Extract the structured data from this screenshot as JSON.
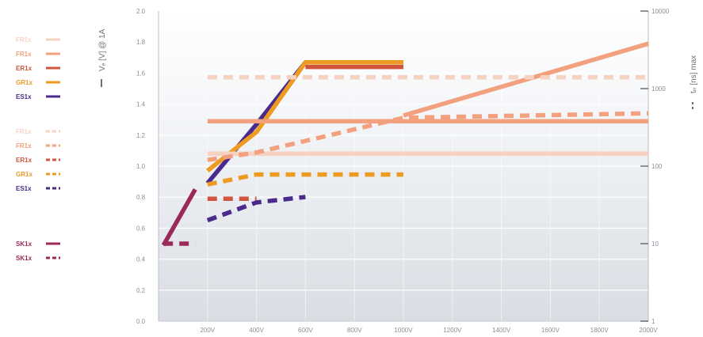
{
  "chart_data": {
    "type": "line",
    "title": "",
    "xlabel": "",
    "ylabel_left": "Vₑ [V] @ 1A",
    "ylabel_right": "tᵣᵣ [ns] max",
    "x_tick_labels": [
      "200V",
      "400V",
      "600V",
      "800V",
      "1000V",
      "1200V",
      "1400V",
      "1600V",
      "1800V",
      "2000V"
    ],
    "x_tick_values": [
      200,
      400,
      600,
      800,
      1000,
      1200,
      1400,
      1600,
      1800,
      2000
    ],
    "xlim": [
      0,
      2000
    ],
    "ylim_left": [
      0,
      2.0
    ],
    "y_left_ticks": [
      "0.0",
      "0.2",
      "0.4",
      "0.6",
      "0.8",
      "1.0",
      "1.2",
      "1.4",
      "1.6",
      "1.8",
      "2.0"
    ],
    "y_left_tick_values": [
      0,
      0.2,
      0.4,
      0.6,
      0.8,
      1.0,
      1.2,
      1.4,
      1.6,
      1.8,
      2.0
    ],
    "ylim_right": [
      1,
      10000
    ],
    "y_right_scale": "log",
    "y_right_ticks": [
      "1",
      "10",
      "100",
      "1000",
      "10000"
    ],
    "y_right_tick_values": [
      1,
      10,
      100,
      1000,
      10000
    ],
    "grid": true,
    "legend_groups": [
      {
        "style": "solid",
        "items": [
          {
            "label": "FR1x",
            "color": "#f7d2c3"
          },
          {
            "label": "FR1x",
            "color": "#f2a07d"
          },
          {
            "label": "ER1x",
            "color": "#d2563f"
          },
          {
            "label": "GR1x",
            "color": "#ee9b22"
          },
          {
            "label": "ES1x",
            "color": "#4b2a8c"
          }
        ]
      },
      {
        "style": "dashed",
        "items": [
          {
            "label": "FR1x",
            "color": "#f7d2c3"
          },
          {
            "label": "FR1x",
            "color": "#f2a07d"
          },
          {
            "label": "ER1x",
            "color": "#d2563f"
          },
          {
            "label": "GR1x",
            "color": "#ee9b22"
          },
          {
            "label": "ES1x",
            "color": "#4b2a8c"
          }
        ]
      },
      {
        "style": "mixed",
        "items": [
          {
            "label": "SK1x",
            "color": "#9b2a5a"
          },
          {
            "label": "SK1x",
            "color": "#9b2a5a"
          }
        ]
      }
    ],
    "series": [
      {
        "axis": "left",
        "style": "solid",
        "color": "#4b2a8c",
        "x": [
          200,
          400,
          600
        ],
        "y": [
          0.89,
          1.27,
          1.67
        ]
      },
      {
        "axis": "left",
        "style": "solid",
        "color": "#ee9b22",
        "x": [
          200,
          400,
          600,
          1000
        ],
        "y": [
          0.97,
          1.22,
          1.67,
          1.67
        ]
      },
      {
        "axis": "left",
        "style": "solid",
        "color": "#d2563f",
        "x": [
          600,
          1000
        ],
        "y": [
          1.64,
          1.64
        ]
      },
      {
        "axis": "left",
        "style": "solid",
        "color": "#f2a07d",
        "x": [
          200,
          2000
        ],
        "y": [
          1.29,
          1.29
        ]
      },
      {
        "axis": "left",
        "style": "solid",
        "color": "#f7d2c3",
        "x": [
          200,
          2000
        ],
        "y": [
          1.08,
          1.08
        ]
      },
      {
        "axis": "left",
        "style": "solid",
        "color": "#9b2a5a",
        "x": [
          20,
          150
        ],
        "y": [
          0.49,
          0.85
        ]
      },
      {
        "axis": "right",
        "style": "dashed",
        "color": "#f2a07d",
        "x": [
          200,
          400,
          1000,
          2000
        ],
        "y": [
          120,
          150,
          420,
          480
        ]
      },
      {
        "axis": "right",
        "style": "solid",
        "color": "#f2a07d",
        "x": [
          1000,
          2000
        ],
        "y": [
          450,
          3800
        ]
      },
      {
        "axis": "right",
        "style": "dashed",
        "color": "#f7d2c3",
        "x": [
          200,
          2000
        ],
        "y": [
          1400,
          1400
        ]
      },
      {
        "axis": "right",
        "style": "dashed",
        "color": "#ee9b22",
        "x": [
          200,
          400,
          1000
        ],
        "y": [
          58,
          78,
          78
        ]
      },
      {
        "axis": "right",
        "style": "dashed",
        "color": "#d2563f",
        "x": [
          200,
          400
        ],
        "y": [
          38,
          38
        ]
      },
      {
        "axis": "right",
        "style": "dashed",
        "color": "#4b2a8c",
        "x": [
          200,
          400,
          600
        ],
        "y": [
          20,
          34,
          40
        ]
      },
      {
        "axis": "right",
        "style": "dashed",
        "color": "#9b2a5a",
        "x": [
          20,
          150
        ],
        "y": [
          10,
          10
        ]
      }
    ]
  }
}
